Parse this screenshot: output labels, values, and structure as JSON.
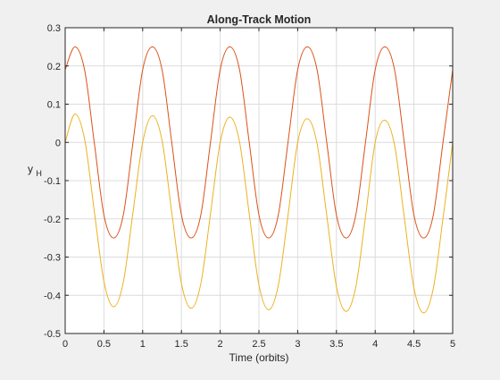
{
  "chart_data": {
    "type": "line",
    "title": "Along-Track Motion",
    "xlabel": "Time (orbits)",
    "ylabel": "y",
    "ylabel_subscript": "H",
    "xlim": [
      0,
      5
    ],
    "ylim": [
      -0.5,
      0.3
    ],
    "xticks": [
      "0",
      "0.5",
      "1",
      "1.5",
      "2",
      "2.5",
      "3",
      "3.5",
      "4",
      "4.5",
      "5"
    ],
    "yticks": [
      "-0.5",
      "-0.4",
      "-0.3",
      "-0.2",
      "-0.1",
      "0",
      "0.1",
      "0.2",
      "0.3"
    ],
    "grid": true,
    "colors": {
      "series1": "#d95319",
      "series2": "#edb120",
      "background": "#f0f0f0",
      "axes": "#ffffff"
    },
    "series": [
      {
        "color": "#d95319",
        "x": [
          0,
          0.125,
          0.25,
          0.375,
          0.5,
          0.625,
          0.75,
          0.875,
          1.0,
          1.125,
          1.25,
          1.375,
          1.5,
          1.625,
          1.75,
          1.875,
          2.0,
          2.125,
          2.25,
          2.375,
          2.5,
          2.625,
          2.75,
          2.875,
          3.0,
          3.125,
          3.25,
          3.375,
          3.5,
          3.625,
          3.75,
          3.875,
          4.0,
          4.125,
          4.25,
          4.375,
          4.5,
          4.625,
          4.75,
          4.875,
          5.0
        ],
        "y": [
          0.19,
          0.25,
          0.19,
          0.0,
          -0.19,
          -0.25,
          -0.19,
          0.0,
          0.19,
          0.25,
          0.19,
          0.0,
          -0.19,
          -0.25,
          -0.19,
          0.0,
          0.19,
          0.25,
          0.19,
          0.0,
          -0.19,
          -0.25,
          -0.19,
          0.0,
          0.19,
          0.25,
          0.19,
          0.0,
          -0.19,
          -0.25,
          -0.19,
          0.0,
          0.19,
          0.25,
          0.19,
          0.0,
          -0.19,
          -0.25,
          -0.19,
          0.0,
          0.19
        ]
      },
      {
        "color": "#edb120",
        "x": [
          0,
          0.125,
          0.25,
          0.375,
          0.5,
          0.625,
          0.75,
          0.875,
          1.0,
          1.125,
          1.25,
          1.375,
          1.5,
          1.625,
          1.75,
          1.875,
          2.0,
          2.125,
          2.25,
          2.375,
          2.5,
          2.625,
          2.75,
          2.875,
          3.0,
          3.125,
          3.25,
          3.375,
          3.5,
          3.625,
          3.75,
          3.875,
          4.0,
          4.125,
          4.25,
          4.375,
          4.5,
          4.625,
          4.75,
          4.875,
          5.0
        ],
        "y": [
          0.0,
          0.074,
          0.009,
          -0.179,
          -0.364,
          -0.43,
          -0.366,
          -0.183,
          0.0,
          0.07,
          0.005,
          -0.183,
          -0.369,
          -0.434,
          -0.37,
          -0.187,
          0.0,
          0.066,
          0.001,
          -0.187,
          -0.373,
          -0.438,
          -0.374,
          -0.191,
          0.0,
          0.062,
          -0.003,
          -0.191,
          -0.377,
          -0.442,
          -0.378,
          -0.195,
          0.0,
          0.058,
          -0.007,
          -0.195,
          -0.381,
          -0.446,
          -0.382,
          -0.199,
          0.0
        ]
      }
    ]
  }
}
